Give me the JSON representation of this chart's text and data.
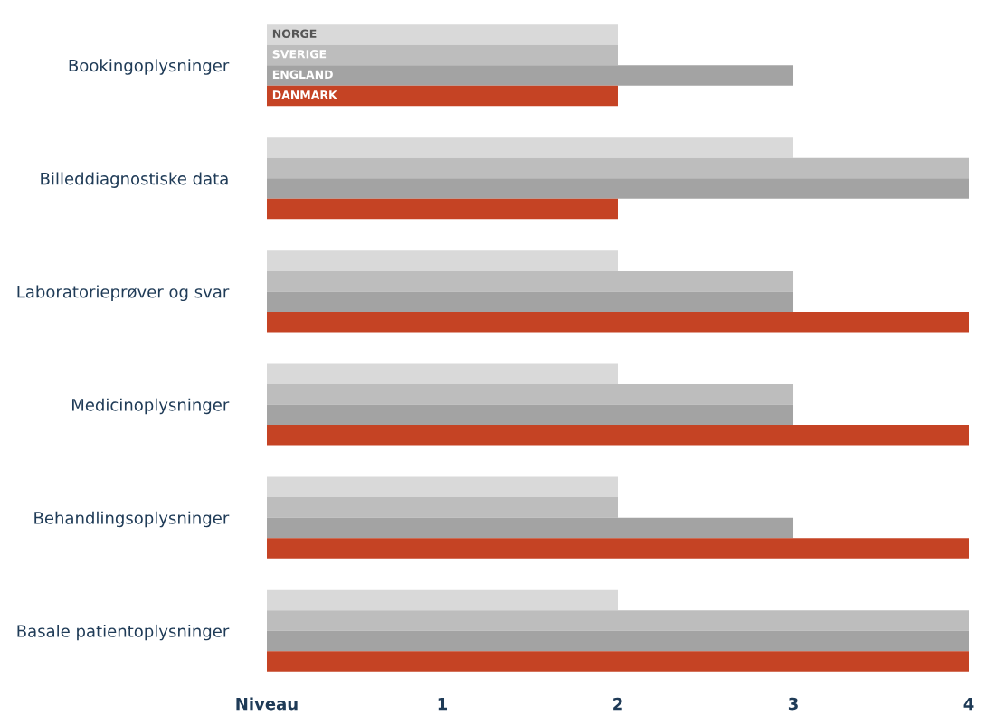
{
  "chart_data": {
    "type": "bar",
    "orientation": "horizontal",
    "categories": [
      "Bookingoplysninger",
      "Billeddiagnostiske data",
      "Laboratorieprøver og svar",
      "Medicinoplysninger",
      "Behandlingsoplysninger",
      "Basale patientoplysninger"
    ],
    "series": [
      {
        "name": "NORGE",
        "color": "#d9d9d9",
        "values": [
          2,
          3,
          2,
          2,
          2,
          2
        ]
      },
      {
        "name": "SVERIGE",
        "color": "#bdbdbd",
        "values": [
          2,
          4,
          3,
          3,
          2,
          4
        ]
      },
      {
        "name": "ENGLAND",
        "color": "#a3a3a3",
        "values": [
          3,
          4,
          3,
          3,
          3,
          4
        ]
      },
      {
        "name": "DANMARK",
        "color": "#c54324",
        "values": [
          2,
          2,
          4,
          4,
          4,
          4
        ]
      }
    ],
    "xlim": [
      0,
      4
    ],
    "xticks": [
      {
        "value": 0,
        "label": "Niveau"
      },
      1,
      2,
      3,
      4
    ],
    "grid": false
  }
}
